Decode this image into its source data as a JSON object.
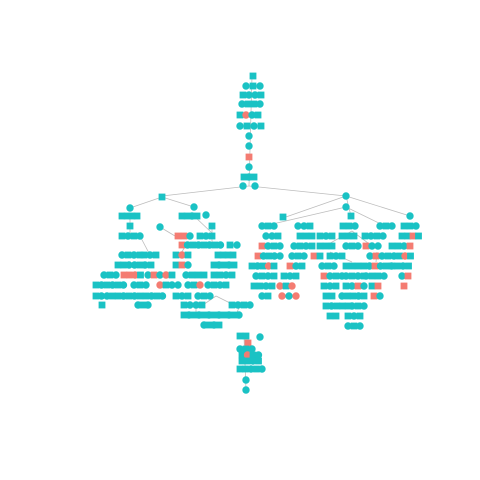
{
  "diagram": {
    "type": "pedigree",
    "colors": {
      "primary": "#1ac2c4",
      "highlight": "#f47c72",
      "edge": "#bdbdbd",
      "background": "#ffffff"
    },
    "legend": "none",
    "text_labels": "none",
    "node_shapes": [
      "square",
      "circle"
    ]
  }
}
